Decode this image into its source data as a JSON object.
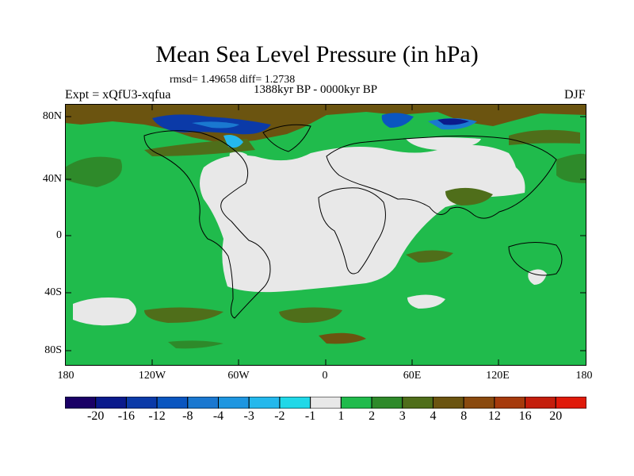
{
  "header": {
    "title": "Mean Sea Level Pressure (in hPa)",
    "stats": "rmsd= 1.49658 diff= 1.2738",
    "period": "1388kyr BP - 0000kyr BP",
    "experiment": "Expt = xQfU3-xqfua",
    "season": "DJF"
  },
  "map": {
    "lat_labels": [
      "80N",
      "40N",
      "0",
      "40S",
      "80S"
    ],
    "lon_labels": [
      "180",
      "120W",
      "60W",
      "0",
      "60E",
      "120E",
      "180"
    ]
  },
  "colorbar": {
    "colors": [
      "#1a0066",
      "#0a1a8c",
      "#0b3aa8",
      "#0a56c0",
      "#1a78d0",
      "#1e96e0",
      "#24b8ec",
      "#20d8e8",
      "#e8e8e8",
      "#20bb4c",
      "#2e8a2a",
      "#4f6e1a",
      "#6b5410",
      "#8a4a0e",
      "#a63a0c",
      "#c41e0c",
      "#e01a0a"
    ],
    "labels": [
      "-20",
      "-16",
      "-12",
      "-8",
      "-4",
      "-3",
      "-2",
      "-1",
      "1",
      "2",
      "3",
      "4",
      "8",
      "12",
      "16",
      "20"
    ]
  }
}
